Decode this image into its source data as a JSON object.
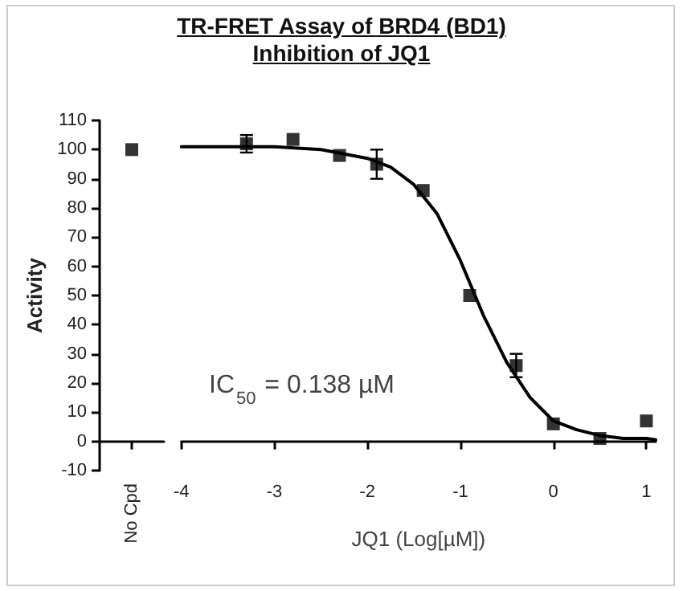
{
  "chart_data": [
    {
      "type": "scatter",
      "ylabel": "Activity",
      "categories": [
        "No Cpd"
      ],
      "values": [
        100
      ],
      "color": "#000000",
      "marker": "square",
      "ylim": [
        -10,
        110
      ],
      "yticks": [
        -10,
        0,
        10,
        20,
        30,
        40,
        50,
        60,
        70,
        80,
        90,
        100,
        110
      ],
      "grid": false
    },
    {
      "type": "scatter",
      "title": "TR-FRET Assay of BRD4 (BD1) Inhibition of JQ1",
      "xlabel": "JQ1 (Log[µM])",
      "annotations": [
        "IC$_{50}$ = 0.138 µM"
      ],
      "xlim": [
        -4,
        1.1
      ],
      "xticks": [
        -4,
        -3,
        -2,
        -1,
        0,
        1
      ],
      "ylim": [
        -10,
        110
      ],
      "yticks": [
        -10,
        0,
        10,
        20,
        30,
        40,
        50,
        60,
        70,
        80,
        90,
        100,
        110
      ],
      "tick_labels": "x",
      "grid": false,
      "series": [
        {
          "color": "#000000",
          "marker": "square",
          "x": [
            -3.3,
            -2.8,
            -2.3,
            -1.9,
            -1.4,
            -0.9,
            -0.4,
            0.0,
            0.5,
            1.0
          ],
          "values": [
            102,
            103.5,
            98,
            95,
            86,
            50,
            26,
            6,
            1,
            7
          ],
          "errors": [
            3,
            null,
            null,
            5,
            null,
            null,
            4,
            null,
            null,
            null
          ]
        },
        {
          "type": "line",
          "color": "#000000",
          "marker": "none",
          "x": [
            -4,
            -3,
            -2.5,
            -2,
            -1.75,
            -1.5,
            -1.25,
            -1,
            -0.75,
            -0.5,
            -0.25,
            0,
            0.25,
            0.5,
            0.75,
            1,
            1.1
          ],
          "values": [
            101,
            101,
            100,
            97,
            94,
            88,
            78,
            62,
            43,
            27,
            15,
            7,
            4,
            2,
            1,
            1,
            0.5
          ]
        }
      ]
    }
  ]
}
